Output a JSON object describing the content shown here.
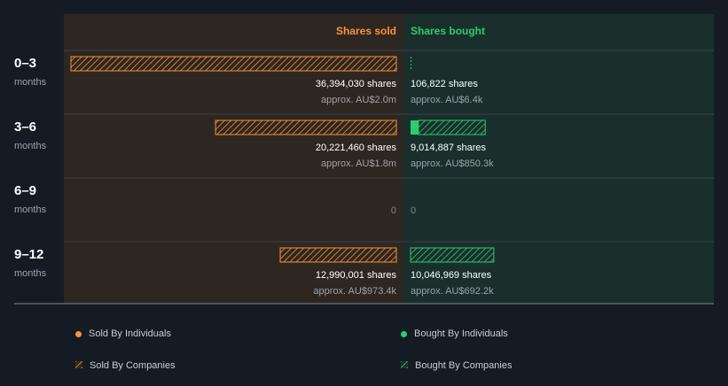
{
  "colors": {
    "background": "#151b24",
    "sold_panel": "#2e2620",
    "bought_panel": "#1a2f2b",
    "sold": "#f5943a",
    "bought": "#2ecc71",
    "divider": "#38424e",
    "axis_line": "#7d8794"
  },
  "chart_data": {
    "type": "bar",
    "orientation": "horizontal-diverging",
    "header_sold": "Shares sold",
    "header_bought": "Shares bought",
    "unit": "shares",
    "sold_max": 36394030,
    "bought_max": 36394030,
    "rows": [
      {
        "period": "0–3",
        "sublabel": "months",
        "sold": {
          "shares": 36394030,
          "shares_label": "36,394,030 shares",
          "approx": "approx. AU$2.0m",
          "individuals": 0,
          "companies": 36394030
        },
        "bought": {
          "shares": 106822,
          "shares_label": "106,822 shares",
          "approx": "approx. AU$6.4k",
          "individuals": 0,
          "companies": 106822
        }
      },
      {
        "period": "3–6",
        "sublabel": "months",
        "sold": {
          "shares": 20221460,
          "shares_label": "20,221,460 shares",
          "approx": "approx. AU$1.8m",
          "individuals": 0,
          "companies": 20221460
        },
        "bought": {
          "shares": 9014887,
          "shares_label": "9,014,887 shares",
          "approx": "approx. AU$850.3k",
          "individuals": 950000,
          "companies": 8064887
        }
      },
      {
        "period": "6–9",
        "sublabel": "months",
        "sold": {
          "shares": 0,
          "shares_label": "0",
          "approx": "",
          "individuals": 0,
          "companies": 0
        },
        "bought": {
          "shares": 0,
          "shares_label": "0",
          "approx": "",
          "individuals": 0,
          "companies": 0
        }
      },
      {
        "period": "9–12",
        "sublabel": "months",
        "sold": {
          "shares": 12990001,
          "shares_label": "12,990,001 shares",
          "approx": "approx. AU$973.4k",
          "individuals": 0,
          "companies": 12990001
        },
        "bought": {
          "shares": 10046969,
          "shares_label": "10,046,969 shares",
          "approx": "approx. AU$692.2k",
          "individuals": 0,
          "companies": 10046969
        }
      }
    ],
    "legend": [
      {
        "label": "Sold By Individuals",
        "style": "dot",
        "side": "sold"
      },
      {
        "label": "Bought By Individuals",
        "style": "dot",
        "side": "bought"
      },
      {
        "label": "Sold By Companies",
        "style": "hatch",
        "side": "sold"
      },
      {
        "label": "Bought By Companies",
        "style": "hatch",
        "side": "bought"
      }
    ]
  }
}
